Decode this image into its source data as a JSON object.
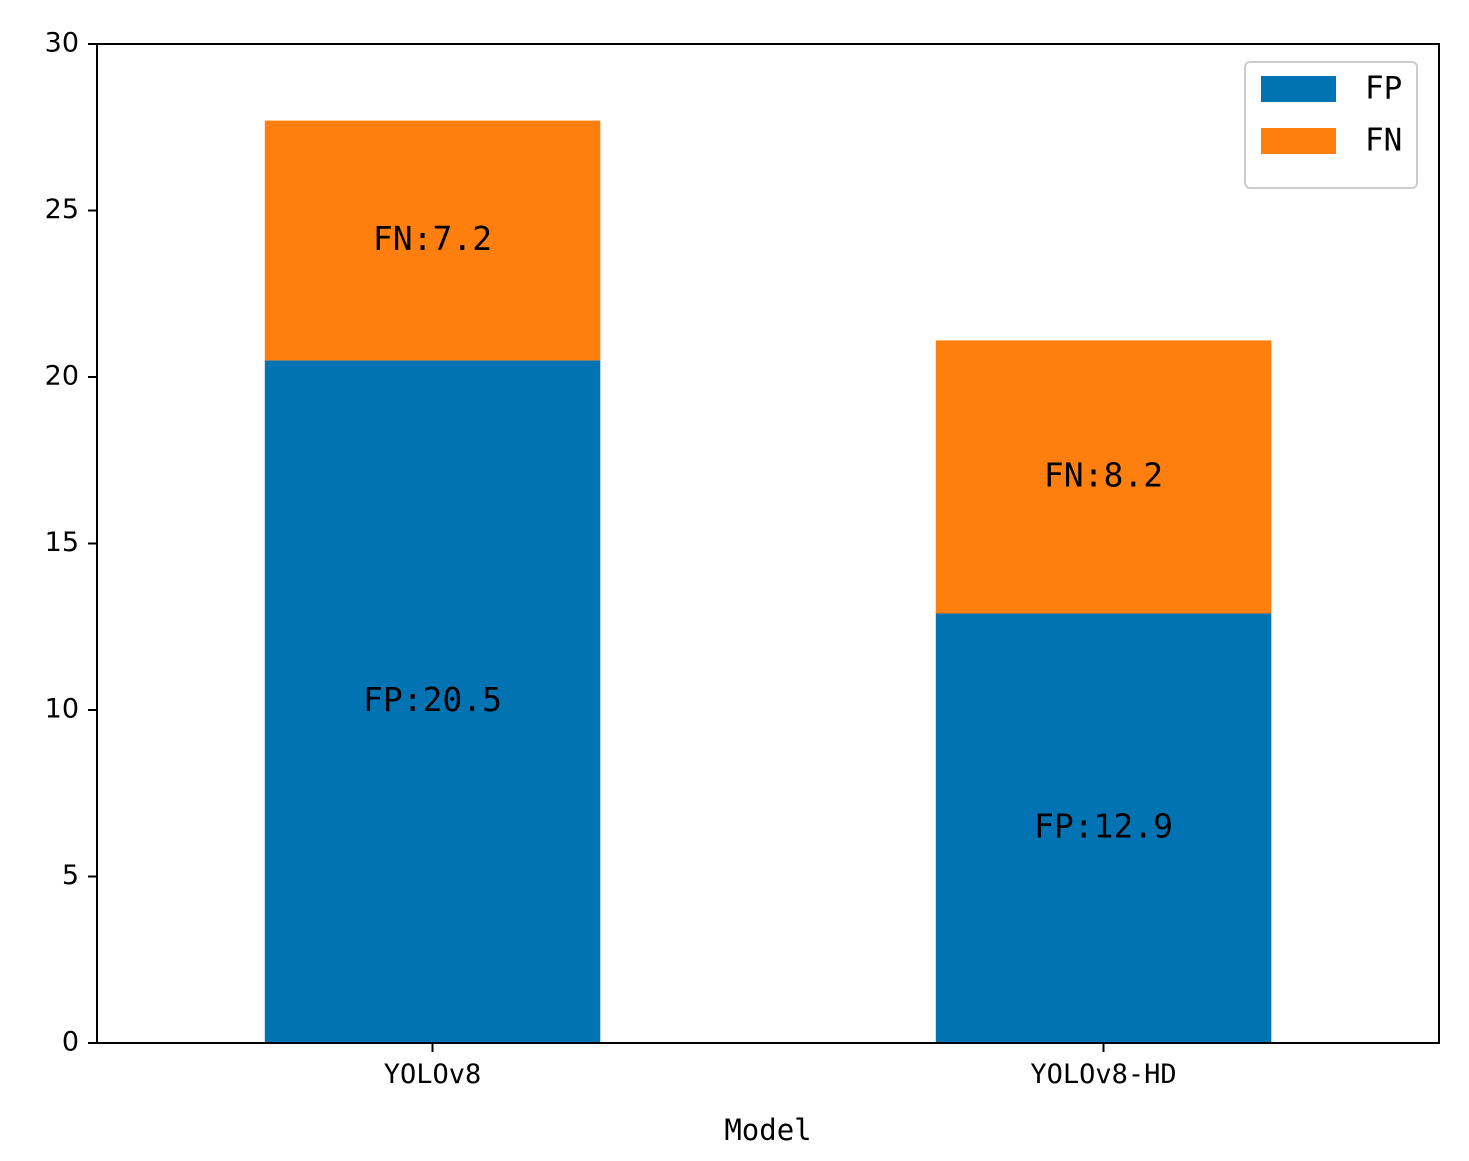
{
  "chart_data": {
    "type": "bar",
    "stacked": true,
    "categories": [
      "YOLOv8",
      "YOLOv8-HD"
    ],
    "series": [
      {
        "name": "FP",
        "values": [
          20.5,
          12.9
        ],
        "color": "#0173b2",
        "labels": [
          "FP:20.5",
          "FP:12.9"
        ]
      },
      {
        "name": "FN",
        "values": [
          7.2,
          8.2
        ],
        "color": "#ff7f0e",
        "labels": [
          "FN:7.2",
          "FN:8.2"
        ]
      }
    ],
    "title": "",
    "xlabel": "Model",
    "ylabel": "",
    "ylim": [
      0,
      30
    ],
    "yticks": [
      0,
      5,
      10,
      15,
      20,
      25,
      30
    ],
    "grid": false,
    "legend_position": "top-right"
  }
}
